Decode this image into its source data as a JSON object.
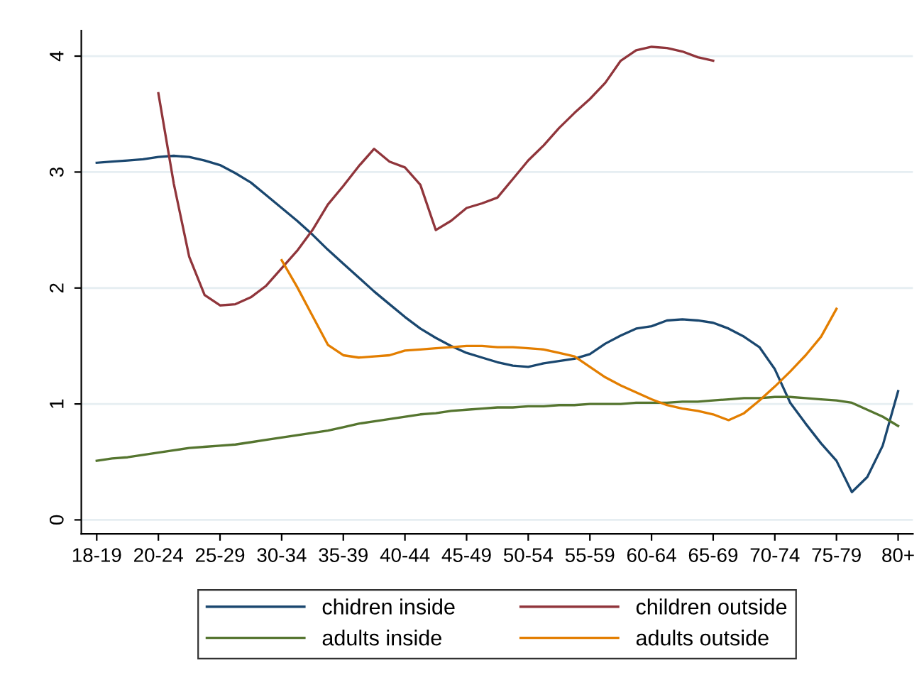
{
  "chart_data": {
    "type": "line",
    "categories": [
      "18-19",
      null,
      null,
      null,
      "20-24",
      null,
      null,
      null,
      "25-29",
      null,
      null,
      null,
      "30-34",
      null,
      null,
      null,
      "35-39",
      null,
      null,
      null,
      "40-44",
      null,
      null,
      null,
      "45-49",
      null,
      null,
      null,
      "50-54",
      null,
      null,
      null,
      "55-59",
      null,
      null,
      null,
      "60-64",
      null,
      null,
      null,
      "65-69",
      null,
      null,
      null,
      "70-74",
      null,
      null,
      null,
      "75-79",
      null,
      null,
      null,
      "80+"
    ],
    "ylim": [
      -0.12,
      4.22
    ],
    "yticks": [
      0,
      1,
      2,
      3,
      4
    ],
    "grid": "y",
    "legend": "bottom",
    "line_style": "solid",
    "marker": "none",
    "series": [
      {
        "name": "chidren inside",
        "color": "#1a476f",
        "values": [
          3.08,
          3.09,
          3.1,
          3.11,
          3.13,
          3.14,
          3.13,
          3.1,
          3.06,
          2.99,
          2.91,
          2.8,
          2.69,
          2.58,
          2.46,
          2.33,
          2.21,
          2.09,
          1.97,
          1.86,
          1.75,
          1.65,
          1.57,
          1.5,
          1.44,
          1.4,
          1.36,
          1.33,
          1.32,
          1.35,
          1.37,
          1.39,
          1.43,
          1.52,
          1.59,
          1.65,
          1.67,
          1.72,
          1.73,
          1.72,
          1.7,
          1.65,
          1.58,
          1.49,
          1.3,
          1.01,
          0.83,
          0.66,
          0.51,
          0.24,
          0.37,
          0.64,
          1.11
        ]
      },
      {
        "name": "children outside",
        "color": "#90353b",
        "values": [
          null,
          null,
          null,
          null,
          3.68,
          2.9,
          2.27,
          1.94,
          1.85,
          1.86,
          1.92,
          2.02,
          2.17,
          2.32,
          2.5,
          2.72,
          2.88,
          3.05,
          3.2,
          3.09,
          3.04,
          2.89,
          2.5,
          2.58,
          2.69,
          2.73,
          2.78,
          2.94,
          3.1,
          3.23,
          3.38,
          3.51,
          3.63,
          3.77,
          3.96,
          4.05,
          4.08,
          4.07,
          4.04,
          3.99,
          3.96,
          null,
          null,
          null,
          null,
          null,
          null,
          null,
          null,
          null,
          null,
          null,
          null
        ]
      },
      {
        "name": "adults inside",
        "color": "#55752f",
        "values": [
          0.51,
          0.53,
          0.54,
          0.56,
          0.58,
          0.6,
          0.62,
          0.63,
          0.64,
          0.65,
          0.67,
          0.69,
          0.71,
          0.73,
          0.75,
          0.77,
          0.8,
          0.83,
          0.85,
          0.87,
          0.89,
          0.91,
          0.92,
          0.94,
          0.95,
          0.96,
          0.97,
          0.97,
          0.98,
          0.98,
          0.99,
          0.99,
          1.0,
          1.0,
          1.0,
          1.01,
          1.01,
          1.01,
          1.02,
          1.02,
          1.03,
          1.04,
          1.05,
          1.05,
          1.06,
          1.06,
          1.05,
          1.04,
          1.03,
          1.01,
          0.95,
          0.89,
          0.81
        ]
      },
      {
        "name": "adults outside",
        "color": "#e37e00",
        "values": [
          null,
          null,
          null,
          null,
          null,
          null,
          null,
          null,
          null,
          null,
          null,
          null,
          2.24,
          2.01,
          1.76,
          1.51,
          1.42,
          1.4,
          1.41,
          1.42,
          1.46,
          1.47,
          1.48,
          1.49,
          1.5,
          1.5,
          1.49,
          1.49,
          1.48,
          1.47,
          1.44,
          1.41,
          1.32,
          1.23,
          1.16,
          1.1,
          1.04,
          0.99,
          0.96,
          0.94,
          0.91,
          0.86,
          0.92,
          1.03,
          1.15,
          1.28,
          1.42,
          1.58,
          1.82,
          null,
          null,
          null,
          null
        ]
      }
    ]
  }
}
